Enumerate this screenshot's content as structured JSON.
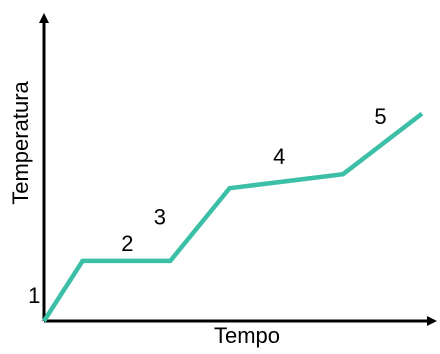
{
  "chart_data": {
    "type": "line",
    "title": "",
    "xlabel": "Tempo",
    "ylabel": "Temperatura",
    "x_ticks": false,
    "y_ticks": false,
    "grid": false,
    "legend": "none",
    "line_color": "#3cbfa7",
    "axis_color": "#000000",
    "xlim": [
      0,
      100
    ],
    "ylim": [
      0,
      100
    ],
    "series": [
      {
        "points": [
          [
            0,
            0
          ],
          [
            10.2,
            30.5
          ],
          [
            33.4,
            30.5
          ],
          [
            49.1,
            67.4
          ],
          [
            79.1,
            74.5
          ],
          [
            100,
            105.3
          ]
        ]
      }
    ],
    "segment_labels": [
      "1",
      "2",
      "3",
      "4",
      "5"
    ]
  }
}
